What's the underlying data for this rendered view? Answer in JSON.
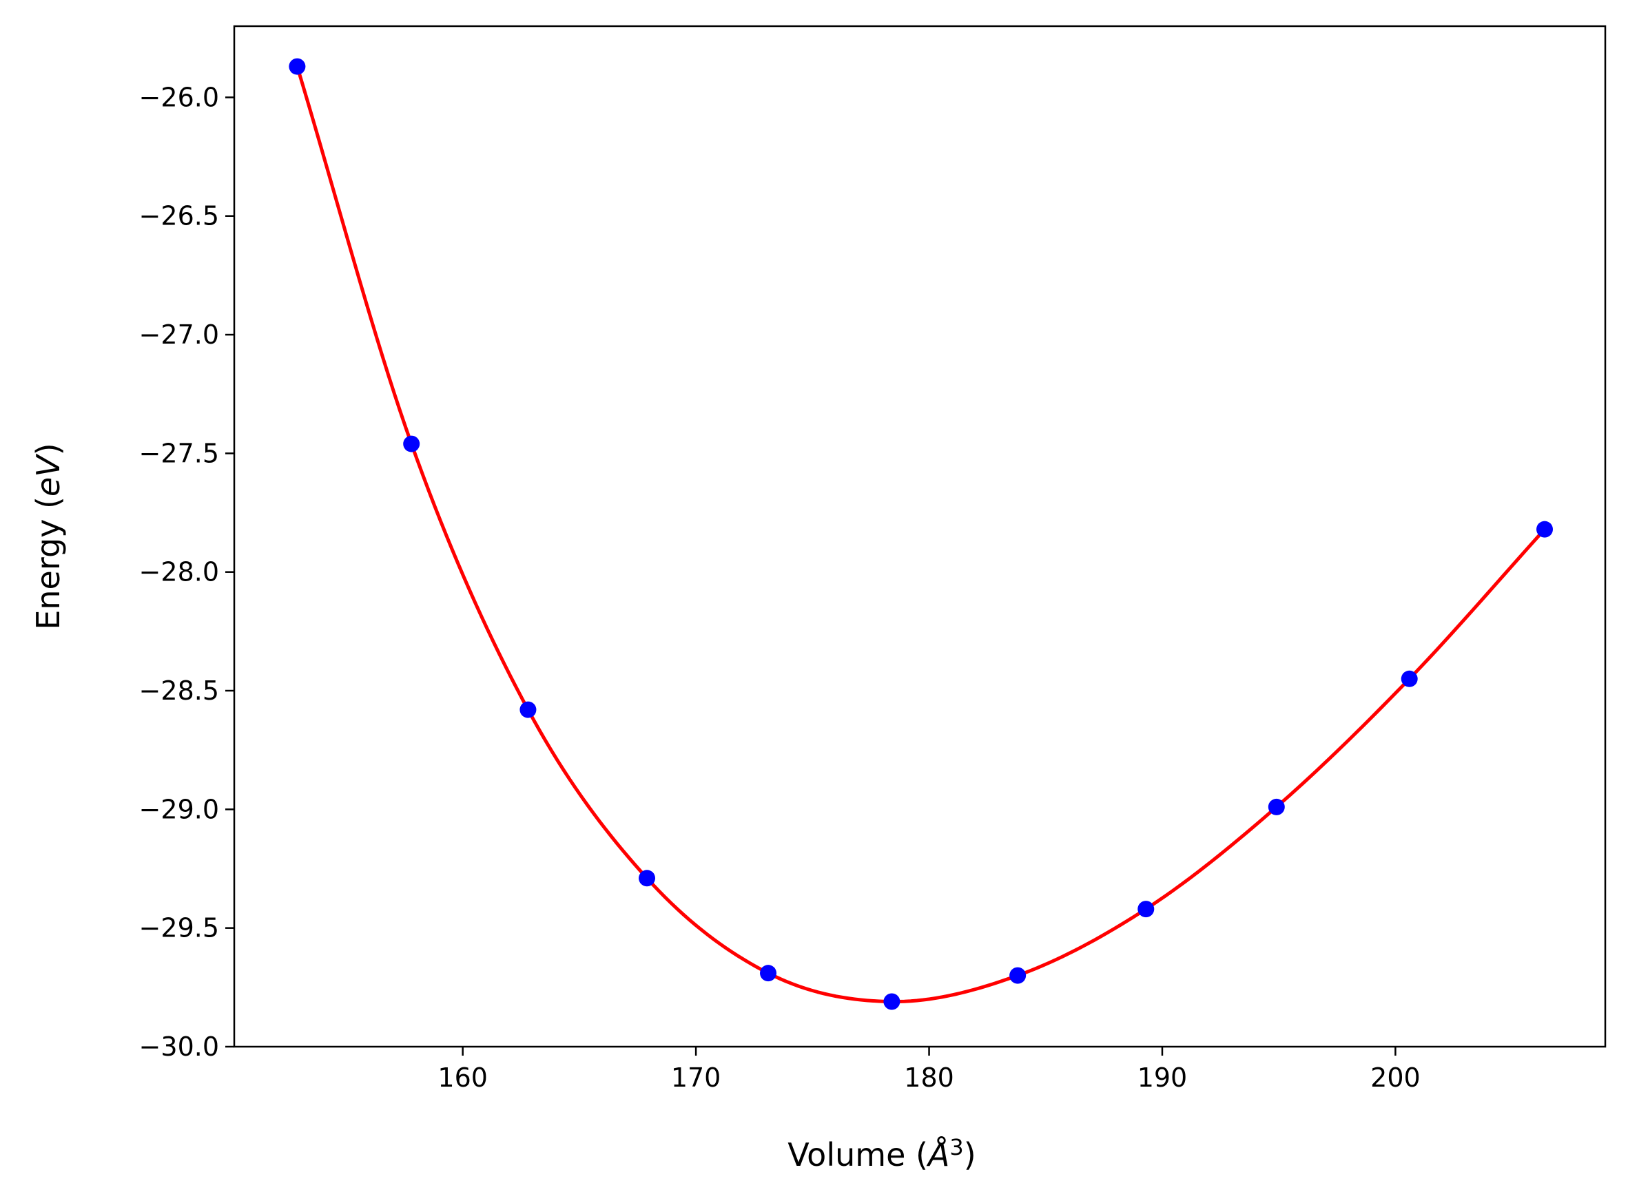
{
  "chart_data": {
    "type": "line",
    "xlabel": {
      "prefix": "Volume (",
      "symbol": "Å",
      "exponent": "3",
      "suffix": ")"
    },
    "ylabel": {
      "prefix": "Energy (",
      "symbol": "eV",
      "suffix": ")"
    },
    "xlim": [
      150.2,
      209.0
    ],
    "ylim": [
      -30.0,
      -25.7
    ],
    "x_ticks": [
      {
        "value": 160,
        "label": "160"
      },
      {
        "value": 170,
        "label": "170"
      },
      {
        "value": 180,
        "label": "180"
      },
      {
        "value": 190,
        "label": "190"
      },
      {
        "value": 200,
        "label": "200"
      }
    ],
    "y_ticks": [
      {
        "value": -26.0,
        "label": "−26.0"
      },
      {
        "value": -26.5,
        "label": "−26.5"
      },
      {
        "value": -27.0,
        "label": "−27.0"
      },
      {
        "value": -27.5,
        "label": "−27.5"
      },
      {
        "value": -28.0,
        "label": "−28.0"
      },
      {
        "value": -28.5,
        "label": "−28.5"
      },
      {
        "value": -29.0,
        "label": "−29.0"
      },
      {
        "value": -29.5,
        "label": "−29.5"
      },
      {
        "value": -30.0,
        "label": "−30.0"
      }
    ],
    "grid": false,
    "series": [
      {
        "kind": "scatter",
        "color": "#0000ff",
        "points": [
          [
            152.9,
            -25.87
          ],
          [
            157.8,
            -27.46
          ],
          [
            162.8,
            -28.58
          ],
          [
            167.9,
            -29.29
          ],
          [
            173.1,
            -29.69
          ],
          [
            178.4,
            -29.81
          ],
          [
            183.8,
            -29.7
          ],
          [
            189.3,
            -29.42
          ],
          [
            194.9,
            -28.99
          ],
          [
            200.6,
            -28.45
          ],
          [
            206.4,
            -27.82
          ]
        ]
      },
      {
        "kind": "fit-line",
        "color": "#ff0000"
      }
    ]
  }
}
